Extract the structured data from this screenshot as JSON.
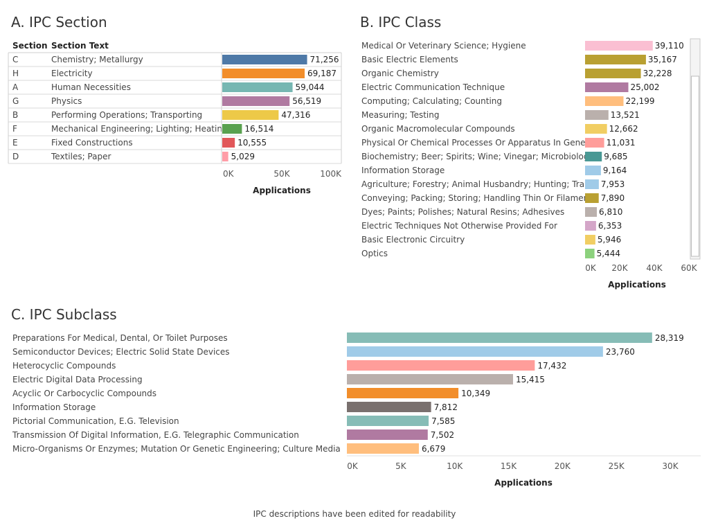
{
  "footnote": "IPC descriptions have been edited for readability",
  "chart_data": [
    {
      "type": "bar",
      "title": "A. IPC Section",
      "columns": [
        "Section",
        "Section Text"
      ],
      "codes": [
        "C",
        "H",
        "A",
        "G",
        "B",
        "F",
        "E",
        "D"
      ],
      "categories": [
        "Chemistry; Metallurgy",
        "Electricity",
        "Human Necessities",
        "Physics",
        "Performing Operations; Transporting",
        "Mechanical Engineering; Lighting; Heating..",
        "Fixed Constructions",
        "Textiles; Paper"
      ],
      "values": [
        71256,
        69187,
        59044,
        56519,
        47316,
        16514,
        10555,
        5029
      ],
      "value_labels": [
        "71,256",
        "69,187",
        "59,044",
        "56,519",
        "47,316",
        "16,514",
        "10,555",
        "5,029"
      ],
      "colors": [
        "#4e79a7",
        "#f28e2b",
        "#76b7b2",
        "#b07aa1",
        "#edc948",
        "#59a14f",
        "#e15759",
        "#ff9da7"
      ],
      "xlabel": "Applications",
      "xlim": [
        0,
        100000
      ],
      "ticks": [
        0,
        50000,
        100000
      ],
      "tick_labels": [
        "0K",
        "50K",
        "100K"
      ]
    },
    {
      "type": "bar",
      "title": "B. IPC Class",
      "categories": [
        "Medical Or Veterinary Science; Hygiene",
        "Basic Electric Elements",
        "Organic Chemistry",
        "Electric Communication Technique",
        "Computing; Calculating; Counting",
        "Measuring; Testing",
        "Organic Macromolecular Compounds",
        "Physical Or Chemical Processes Or Apparatus In General",
        "Biochemistry; Beer; Spirits; Wine; Vinegar; Microbiolog..",
        "Information Storage",
        "Agriculture; Forestry; Animal Husbandry; Hunting; Trap..",
        "Conveying; Packing; Storing; Handling Thin Or Filament..",
        "Dyes; Paints; Polishes; Natural Resins; Adhesives",
        "Electric Techniques Not Otherwise Provided For",
        "Basic Electronic Circuitry",
        "Optics"
      ],
      "values": [
        39110,
        35167,
        32228,
        25002,
        22199,
        13521,
        12662,
        11031,
        9685,
        9164,
        7953,
        7890,
        6810,
        6353,
        5946,
        5444
      ],
      "value_labels": [
        "39,110",
        "35,167",
        "32,228",
        "25,002",
        "22,199",
        "13,521",
        "12,662",
        "11,031",
        "9,685",
        "9,164",
        "7,953",
        "7,890",
        "6,810",
        "6,353",
        "5,946",
        "5,444"
      ],
      "colors": [
        "#fabfd2",
        "#b9a032",
        "#b9a032",
        "#b07aa1",
        "#ffbe7d",
        "#bab0ac",
        "#f1ce63",
        "#ff9d9a",
        "#499894",
        "#a0cbe8",
        "#a0cbe8",
        "#b9a032",
        "#bab0ac",
        "#d4a6c8",
        "#f1ce63",
        "#8cd17d"
      ],
      "xlabel": "Applications",
      "xlim": [
        0,
        60000
      ],
      "ticks": [
        0,
        20000,
        40000,
        60000
      ],
      "tick_labels": [
        "0K",
        "20K",
        "40K",
        "60K"
      ]
    },
    {
      "type": "bar",
      "title": "C. IPC Subclass",
      "categories": [
        "Preparations For Medical, Dental, Or Toilet Purposes",
        "Semiconductor Devices; Electric Solid State Devices",
        "Heterocyclic Compounds",
        "Electric Digital Data Processing",
        "Acyclic Or Carbocyclic Compounds",
        "Information Storage",
        "Pictorial Communication, E.G. Television",
        "Transmission Of Digital Information, E.G. Telegraphic Communication",
        "Micro-Organisms Or Enzymes; Mutation Or Genetic Engineering; Culture Media"
      ],
      "values": [
        28319,
        23760,
        17432,
        15415,
        10349,
        7812,
        7585,
        7502,
        6679
      ],
      "value_labels": [
        "28,319",
        "23,760",
        "17,432",
        "15,415",
        "10,349",
        "7,812",
        "7,585",
        "7,502",
        "6,679"
      ],
      "colors": [
        "#86bcb6",
        "#a0cbe8",
        "#ff9d9a",
        "#bab0ac",
        "#f28e2b",
        "#79706e",
        "#86bcb6",
        "#b07aa1",
        "#ffbe7d"
      ],
      "xlabel": "Applications",
      "xlim": [
        0,
        30000
      ],
      "ticks": [
        0,
        5000,
        10000,
        15000,
        20000,
        25000,
        30000
      ],
      "tick_labels": [
        "0K",
        "5K",
        "10K",
        "15K",
        "20K",
        "25K",
        "30K"
      ]
    }
  ]
}
